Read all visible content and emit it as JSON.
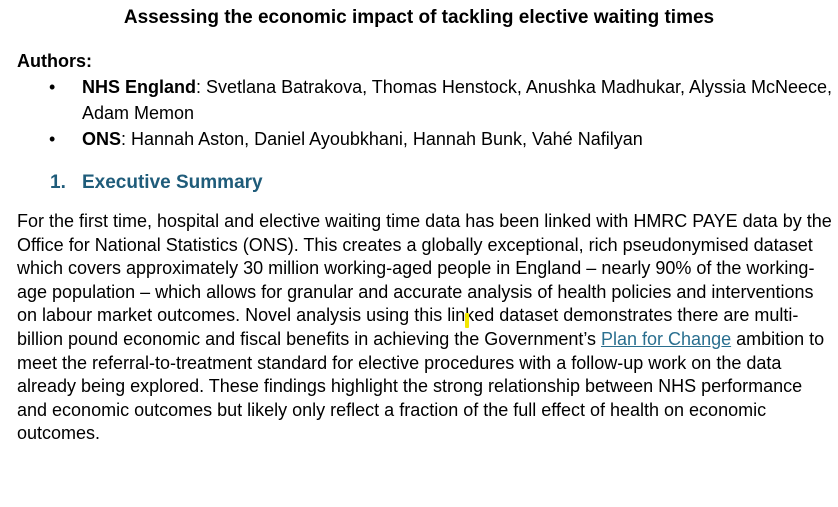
{
  "document": {
    "title": "Assessing the economic impact of tackling elective waiting times",
    "authors_heading": "Authors:",
    "authors": [
      {
        "bullet": "•",
        "org": "NHS England",
        "separator": ":",
        "names": " Svetlana Batrakova, Thomas Henstock, Anushka Madhukar, Alyssia McNeece, Adam Memon"
      },
      {
        "bullet": "•",
        "org": "ONS",
        "separator": ":",
        "names": " Hannah Aston, Daniel Ayoubkhani, Hannah Bunk, Vahé Nafilyan"
      }
    ],
    "section": {
      "number": "1.",
      "title": "Executive Summary"
    },
    "summary": {
      "text_before_link": "For the first time, hospital and elective waiting time data has been linked with HMRC PAYE data by the Office for National Statistics (ONS). This creates a globally exceptional, rich pseudonymised dataset which covers approximately 30 million working-aged people in England – nearly 90% of the working-age population – which allows for granular and accurate analysis of health policies and interventions on labour market outcomes. Novel analysis using this linked dataset demonstrates there are multi-billion pound economic and fiscal benefits in achieving the Government’s ",
      "link_text": "Plan for Change",
      "text_after_link": " ambition to meet the referral-to-treatment standard for elective procedures with a follow-up work on the data already being explored. These findings highlight the strong relationship between NHS performance and economic outcomes but likely only reflect a fraction of the full effect of health on economic outcomes."
    },
    "colors": {
      "heading": "#1f5c7a",
      "link": "#2a6f8f",
      "cursor_highlight": "#f2e600"
    }
  }
}
